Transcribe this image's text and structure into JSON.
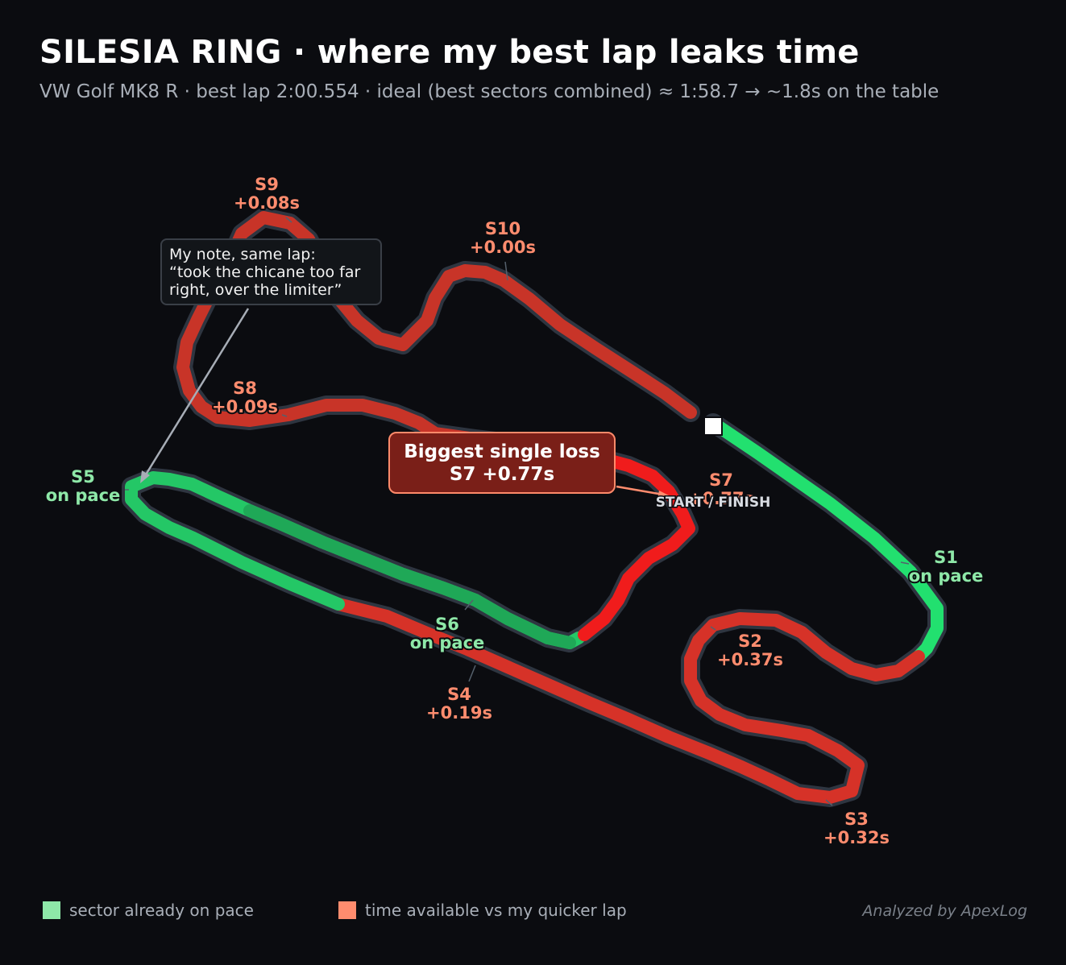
{
  "header": {
    "title": "SILESIA RING  ·  where my best lap leaks time",
    "subtitle": "VW Golf MK8 R  ·  best lap 2:00.554  ·  ideal (best sectors combined) ≈ 1:58.7  →  ~1.8s on the table"
  },
  "sectors": [
    {
      "name": "S1",
      "delta": "on pace",
      "status": "on-pace"
    },
    {
      "name": "S2",
      "delta": "+0.37s",
      "status": "loss"
    },
    {
      "name": "S3",
      "delta": "+0.32s",
      "status": "loss"
    },
    {
      "name": "S4",
      "delta": "+0.19s",
      "status": "loss"
    },
    {
      "name": "S5",
      "delta": "on pace",
      "status": "on-pace"
    },
    {
      "name": "S6",
      "delta": "on pace",
      "status": "on-pace"
    },
    {
      "name": "S7",
      "delta": "+0.77s",
      "status": "loss"
    },
    {
      "name": "S8",
      "delta": "+0.09s",
      "status": "loss"
    },
    {
      "name": "S9",
      "delta": "+0.08s",
      "status": "loss"
    },
    {
      "name": "S10",
      "delta": "+0.00s",
      "status": "loss"
    }
  ],
  "start_finish_label": "START / FINISH",
  "note": {
    "line1": "My note, same lap:",
    "line2": "“took the chicane too far",
    "line3": "right, over the limiter”"
  },
  "biggest_loss": {
    "line1": "Biggest single loss",
    "line2": "S7  +0.77s"
  },
  "legend": {
    "on_pace": "sector already on pace",
    "loss": "time available vs my quicker lap"
  },
  "credit": "Analyzed by ApexLog",
  "colors": {
    "background": "#0b0c10",
    "on_pace_green": "#22e06f",
    "loss_red": "#d63228",
    "biggest_loss_red": "#f01c1c",
    "label_green": "#8ee8a8",
    "label_salmon": "#ff8c6e"
  }
}
